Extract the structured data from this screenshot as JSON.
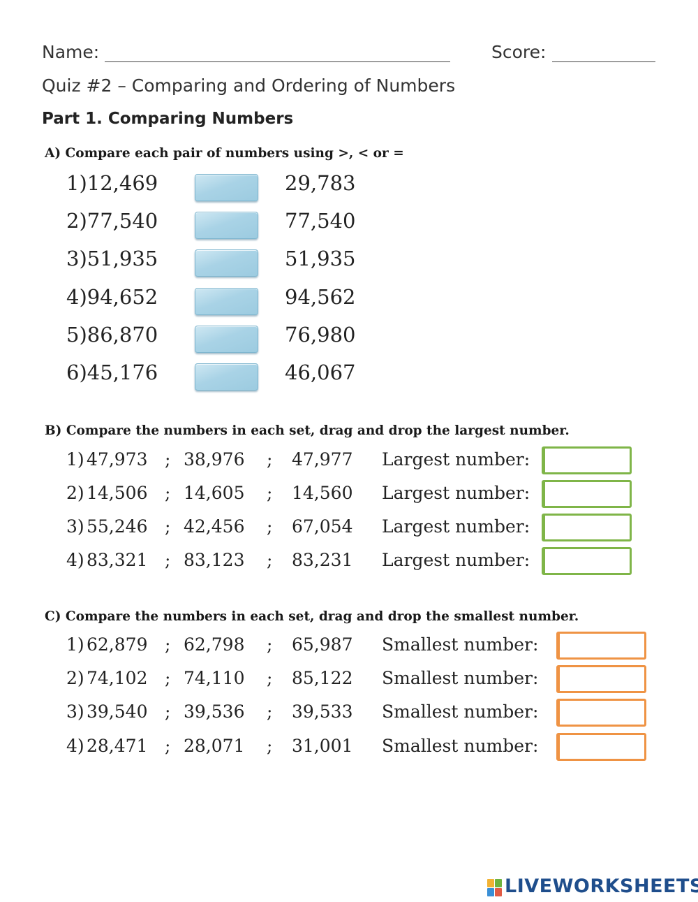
{
  "header": {
    "name_label": "Name:",
    "score_label": "Score:",
    "quiz_title": "Quiz #2 – Comparing and Ordering of Numbers"
  },
  "part1": {
    "title": "Part 1. Comparing Numbers"
  },
  "sectionA": {
    "title": "A) Compare each pair of numbers using >, < or =",
    "rows": [
      {
        "label": "1)12,469",
        "right": "29,783"
      },
      {
        "label": "2)77,540",
        "right": "77,540"
      },
      {
        "label": "3)51,935",
        "right": "51,935"
      },
      {
        "label": "4)94,652",
        "right": "94,562"
      },
      {
        "label": "5)86,870",
        "right": "76,980"
      },
      {
        "label": "6)45,176",
        "right": "46,067"
      }
    ]
  },
  "sectionB": {
    "title": "B) Compare the numbers in each set, drag and drop the largest number.",
    "separator": ";",
    "answer_label": "Largest number:",
    "rows": [
      {
        "idx": "1)",
        "a": "47,973",
        "b": "38,976",
        "c": "47,977"
      },
      {
        "idx": "2)",
        "a": "14,506",
        "b": "14,605",
        "c": "14,560"
      },
      {
        "idx": "3)",
        "a": "55,246",
        "b": "42,456",
        "c": "67,054"
      },
      {
        "idx": "4)",
        "a": "83,321",
        "b": "83,123",
        "c": "83,231"
      }
    ]
  },
  "sectionC": {
    "title": "C) Compare the numbers in each set, drag and drop the smallest number.",
    "separator": ";",
    "answer_label": "Smallest number:",
    "rows": [
      {
        "idx": "1)",
        "a": "62,879",
        "b": "62,798",
        "c": "65,987"
      },
      {
        "idx": "2)",
        "a": "74,102",
        "b": "74,110",
        "c": "85,122"
      },
      {
        "idx": "3)",
        "a": "39,540",
        "b": "39,536",
        "c": "39,533"
      },
      {
        "idx": "4)",
        "a": "28,471",
        "b": "28,071",
        "c": "31,001"
      }
    ]
  },
  "footer": {
    "logo_text": "LIVEWORKSHEETS"
  },
  "colors": {
    "answer_box_blue": "#a9d3e6",
    "largest_box_border": "#7fb548",
    "smallest_box_border": "#ef9344",
    "logo": "#1f4e8c"
  }
}
